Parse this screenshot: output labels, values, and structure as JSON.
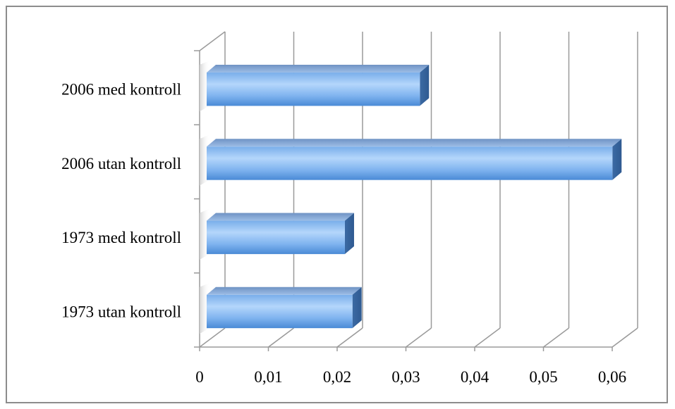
{
  "chart_data": {
    "type": "bar",
    "orientation": "horizontal",
    "style": "3d-clustered",
    "categories": [
      "2006 med kontroll",
      "2006 utan kontroll",
      "1973 med kontroll",
      "1973 utan kontroll"
    ],
    "values": [
      0.031,
      0.059,
      0.0201,
      0.0212
    ],
    "x_ticks": [
      "0",
      "0,01",
      "0,02",
      "0,03",
      "0,04",
      "0,05",
      "0,06"
    ],
    "xlim": [
      0,
      0.06
    ],
    "gridlines": true,
    "legend": "none",
    "colors": {
      "bar_front_light": "#a9d0fa",
      "bar_front_dark": "#4f90dc",
      "bar_top": "#8fb1dd",
      "bar_side": "#3d6fab",
      "grid": "#9a9a9a",
      "frame": "#8c8c8c"
    }
  }
}
